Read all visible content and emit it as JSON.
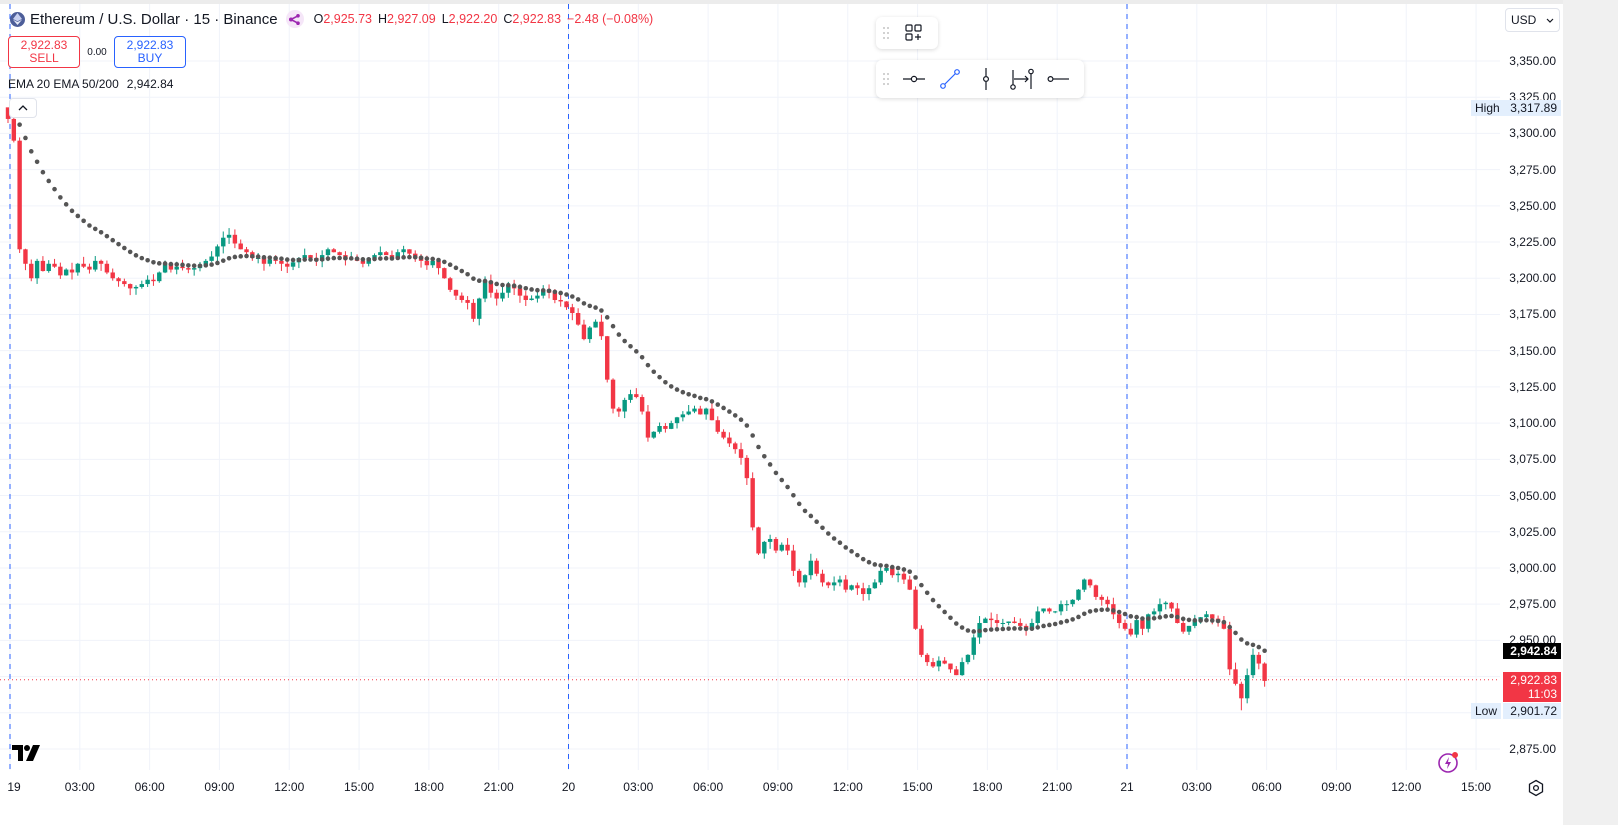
{
  "header": {
    "symbol_title": "Ethereum / U.S. Dollar · 15 · Binance",
    "ohlc": {
      "open_key": "O",
      "open": "2,925.73",
      "high_key": "H",
      "high": "2,927.09",
      "low_key": "L",
      "low": "2,922.20",
      "close_key": "C",
      "close": "2,922.83",
      "change": "−2.48 (−0.08%)"
    }
  },
  "trade": {
    "sell_price": "2,922.83",
    "sell_label": "SELL",
    "spread": "0.00",
    "buy_price": "2,922.83",
    "buy_label": "BUY"
  },
  "indicator": {
    "name": "EMA 20 EMA 50/200",
    "value": "2,942.84"
  },
  "toolbars": {
    "top": [
      "drag-handle",
      "object-tree-add-icon"
    ],
    "drawing": [
      "drag-handle",
      "horizontal-line-icon",
      "trend-line-icon",
      "vertical-line-icon",
      "date-range-icon",
      "horizontal-ray-icon"
    ]
  },
  "price_scale": {
    "currency": "USD",
    "labels": [
      "3,350.00",
      "3,325.00",
      "3,300.00",
      "3,275.00",
      "3,250.00",
      "3,225.00",
      "3,200.00",
      "3,175.00",
      "3,150.00",
      "3,125.00",
      "3,100.00",
      "3,075.00",
      "3,050.00",
      "3,025.00",
      "3,000.00",
      "2,975.00",
      "2,950.00",
      "2,875.00"
    ],
    "high_label": "High",
    "high_value": "3,317.89",
    "low_label": "Low",
    "low_value": "2,901.72",
    "ema_value": "2,942.84",
    "last_price": "2,922.83",
    "countdown": "11:03"
  },
  "time_scale": {
    "labels": [
      "19",
      "03:00",
      "06:00",
      "09:00",
      "12:00",
      "15:00",
      "18:00",
      "21:00",
      "20",
      "03:00",
      "06:00",
      "09:00",
      "12:00",
      "15:00",
      "18:00",
      "21:00",
      "21",
      "03:00",
      "06:00",
      "09:00",
      "12:00",
      "15:00"
    ]
  },
  "colors": {
    "up": "#089981",
    "down": "#f23645",
    "ema": "#555555",
    "grid": "#f0f3fa",
    "session_line": "#2962ff",
    "last_price_line": "#f23645"
  },
  "chart_data": {
    "type": "candlestick",
    "title": "Ethereum / U.S. Dollar · 15 · Binance",
    "interval": "15m",
    "xlabel": "",
    "ylabel": "USD",
    "ylim": [
      2860,
      3360
    ],
    "x_ticks": [
      "19",
      "03:00",
      "06:00",
      "09:00",
      "12:00",
      "15:00",
      "18:00",
      "21:00",
      "20",
      "03:00",
      "06:00",
      "09:00",
      "12:00",
      "15:00",
      "18:00",
      "21:00",
      "21",
      "03:00",
      "06:00",
      "09:00",
      "12:00",
      "15:00"
    ],
    "y_ticks": [
      2875,
      2950,
      2975,
      3000,
      3025,
      3050,
      3075,
      3100,
      3125,
      3150,
      3175,
      3200,
      3225,
      3250,
      3275,
      3300,
      3325,
      3350
    ],
    "session_breaks": [
      "19",
      "20",
      "21"
    ],
    "high": 3317.89,
    "low": 2901.72,
    "last": 2922.83,
    "ema_last": 2942.84,
    "grid": true,
    "closes_path": [
      3310,
      3295,
      3220,
      3210,
      3200,
      3212,
      3205,
      3210,
      3208,
      3202,
      3206,
      3204,
      3210,
      3208,
      3206,
      3212,
      3210,
      3204,
      3200,
      3198,
      3196,
      3193,
      3194,
      3196,
      3199,
      3198,
      3204,
      3210,
      3206,
      3208,
      3207,
      3206,
      3207,
      3209,
      3212,
      3215,
      3222,
      3228,
      3230,
      3224,
      3220,
      3218,
      3214,
      3214,
      3210,
      3213,
      3212,
      3210,
      3208,
      3211,
      3214,
      3216,
      3214,
      3212,
      3216,
      3220,
      3218,
      3216,
      3213,
      3214,
      3212,
      3210,
      3214,
      3216,
      3218,
      3216,
      3214,
      3218,
      3220,
      3217,
      3215,
      3212,
      3209,
      3212,
      3207,
      3200,
      3192,
      3188,
      3185,
      3183,
      3172,
      3186,
      3198,
      3190,
      3186,
      3190,
      3195,
      3193,
      3188,
      3185,
      3186,
      3188,
      3192,
      3190,
      3185,
      3184,
      3180,
      3176,
      3168,
      3158,
      3166,
      3170,
      3160,
      3130,
      3110,
      3108,
      3116,
      3120,
      3118,
      3108,
      3090,
      3094,
      3098,
      3096,
      3100,
      3104,
      3106,
      3108,
      3110,
      3106,
      3110,
      3102,
      3094,
      3090,
      3086,
      3082,
      3076,
      3062,
      3028,
      3010,
      3018,
      3020,
      3012,
      3016,
      3012,
      2998,
      2990,
      2995,
      3005,
      2996,
      2990,
      2988,
      2990,
      2992,
      2985,
      2988,
      2986,
      2982,
      2986,
      2990,
      2998,
      3000,
      2995,
      2996,
      2992,
      2985,
      2958,
      2940,
      2935,
      2932,
      2936,
      2934,
      2930,
      2926,
      2935,
      2940,
      2952,
      2962,
      2965,
      2964,
      2962,
      2962,
      2963,
      2962,
      2960,
      2958,
      2962,
      2970,
      2972,
      2970,
      2970,
      2975,
      2975,
      2978,
      2985,
      2992,
      2988,
      2980,
      2978,
      2975,
      2968,
      2962,
      2958,
      2954,
      2964,
      2958,
      2968,
      2970,
      2975,
      2976,
      2972,
      2962,
      2956,
      2960,
      2964,
      2966,
      2968,
      2965,
      2963,
      2958,
      2930,
      2920,
      2910,
      2926,
      2940,
      2934,
      2922
    ],
    "ema_path_note": "EMA 20 overlay (dotted), descending from ~3318 at start of 19 to 2,942.84 at last bar"
  }
}
